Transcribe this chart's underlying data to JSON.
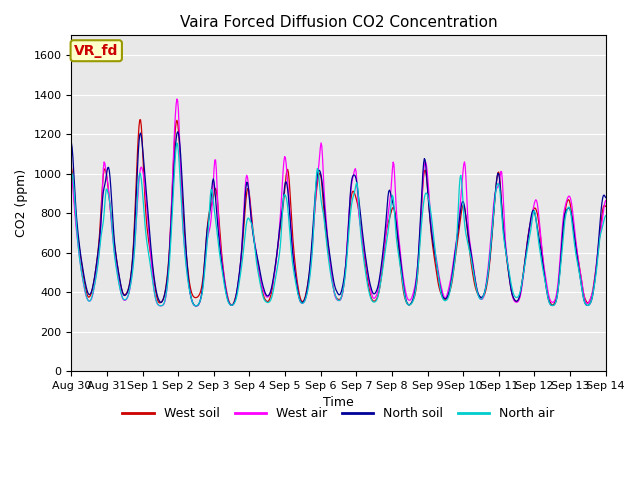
{
  "title": "Vaira Forced Diffusion CO2 Concentration",
  "xlabel": "Time",
  "ylabel": "CO2 (ppm)",
  "ylim": [
    0,
    1700
  ],
  "yticks": [
    0,
    200,
    400,
    600,
    800,
    1000,
    1200,
    1400,
    1600
  ],
  "legend_labels": [
    "West soil",
    "West air",
    "North soil",
    "North air"
  ],
  "colors": [
    "#cc0000",
    "#ff00ff",
    "#000099",
    "#00cccc"
  ],
  "background_color": "#e8e8e8",
  "annotation_text": "VR_fd",
  "annotation_color": "#cc0000",
  "annotation_bg": "#ffffcc",
  "annotation_border": "#999900",
  "title_fontsize": 11,
  "axis_fontsize": 9,
  "tick_fontsize": 8,
  "legend_fontsize": 9,
  "linewidth": 0.9,
  "n_points": 720
}
